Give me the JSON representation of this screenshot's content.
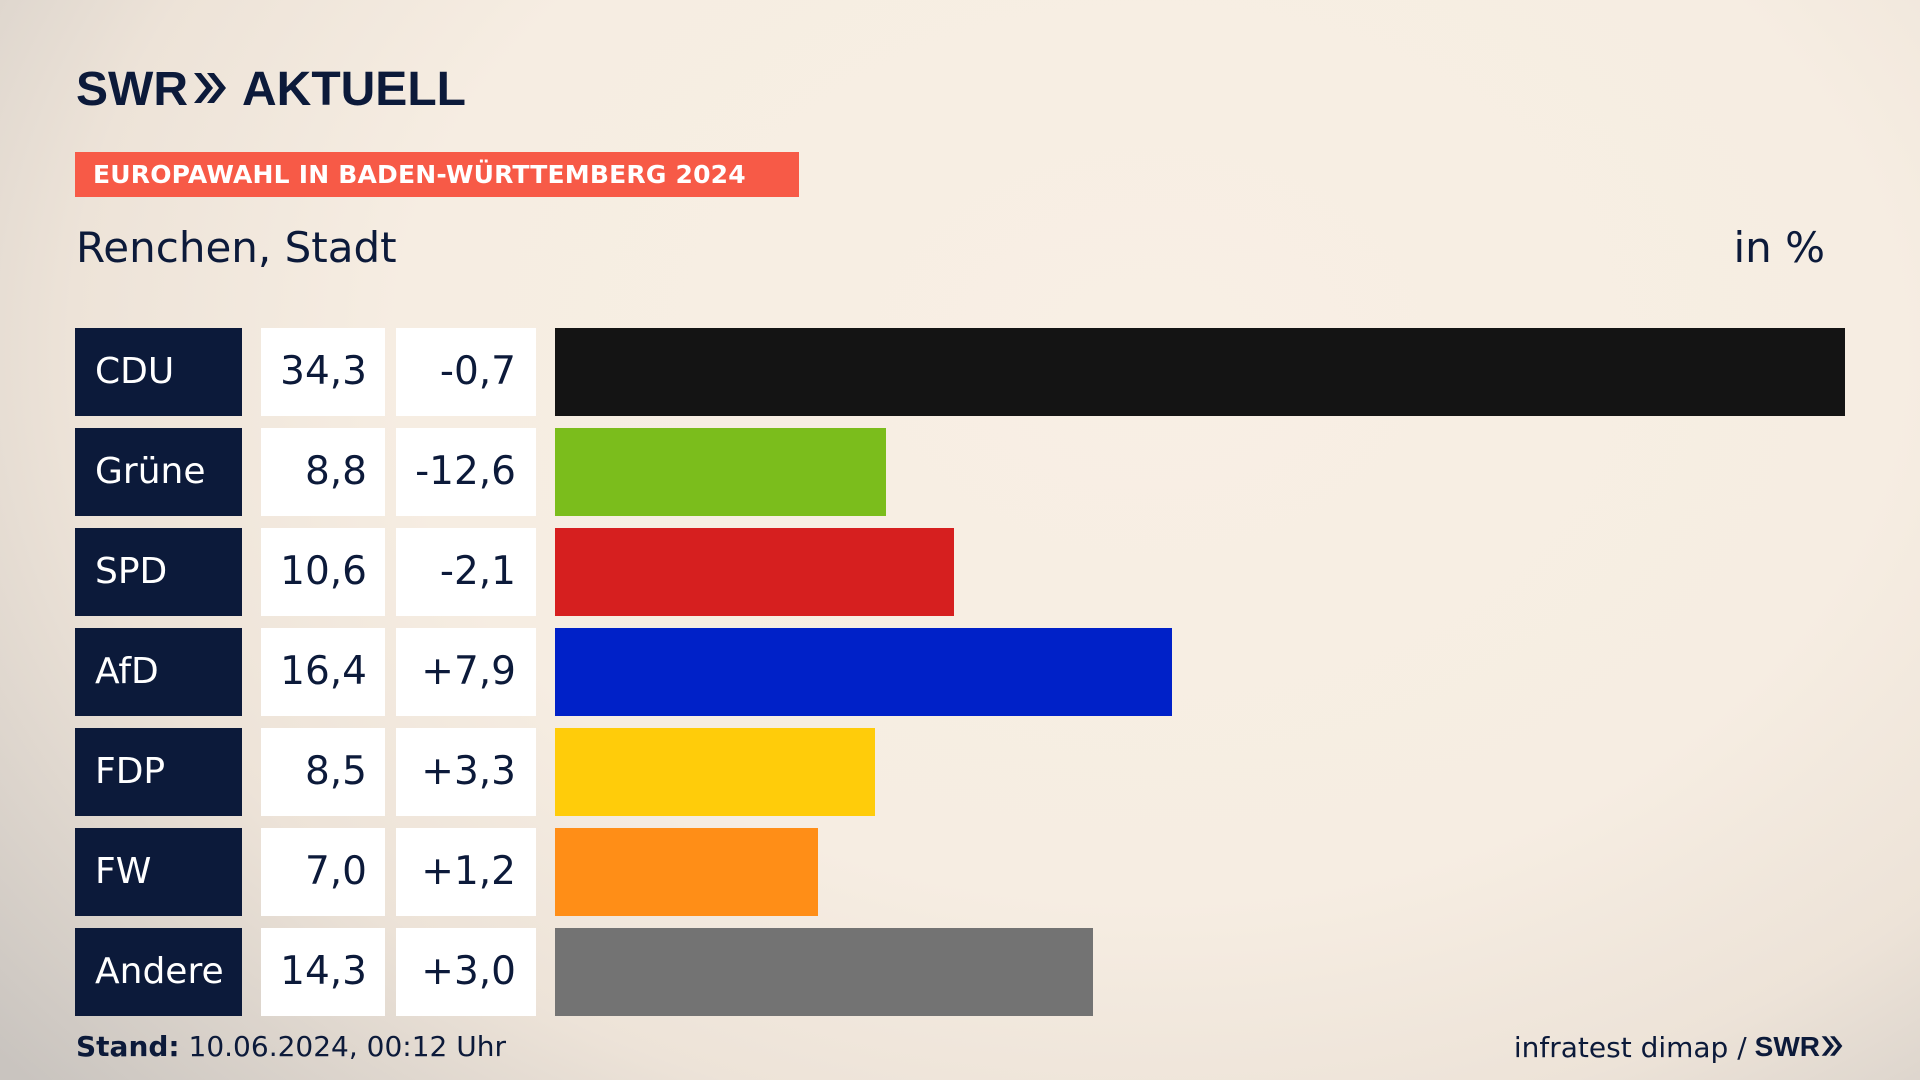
{
  "header": {
    "brand_left": "SWR",
    "brand_right": "AKTUELL",
    "banner": "EUROPAWAHL IN BADEN-WÜRTTEMBERG 2024",
    "subtitle": "Renchen, Stadt",
    "unit": "in %"
  },
  "footer": {
    "stand_label": "Stand:",
    "stand_value": "10.06.2024, 00:12 Uhr",
    "source": "infratest dimap /",
    "source_brand": "SWR"
  },
  "colors": {
    "navy": "#0c1a3a",
    "banner": "#f75a47"
  },
  "chart_data": {
    "type": "bar",
    "orientation": "horizontal",
    "title": "Renchen, Stadt",
    "unit": "in %",
    "xlim": [
      0,
      34.3
    ],
    "categories": [
      "CDU",
      "Grüne",
      "SPD",
      "AfD",
      "FDP",
      "FW",
      "Andere"
    ],
    "values": [
      34.3,
      8.8,
      10.6,
      16.4,
      8.5,
      7.0,
      14.3
    ],
    "value_labels": [
      "34,3",
      "8,8",
      "10,6",
      "16,4",
      "8,5",
      "7,0",
      "14,3"
    ],
    "diff_labels": [
      "-0,7",
      "-12,6",
      "-2,1",
      "+7,9",
      "+3,3",
      "+1,2",
      "+3,0"
    ],
    "colors": [
      "#141414",
      "#7bbd1c",
      "#d61f1f",
      "#0021c8",
      "#ffcc0a",
      "#ff8e17",
      "#737373"
    ]
  }
}
